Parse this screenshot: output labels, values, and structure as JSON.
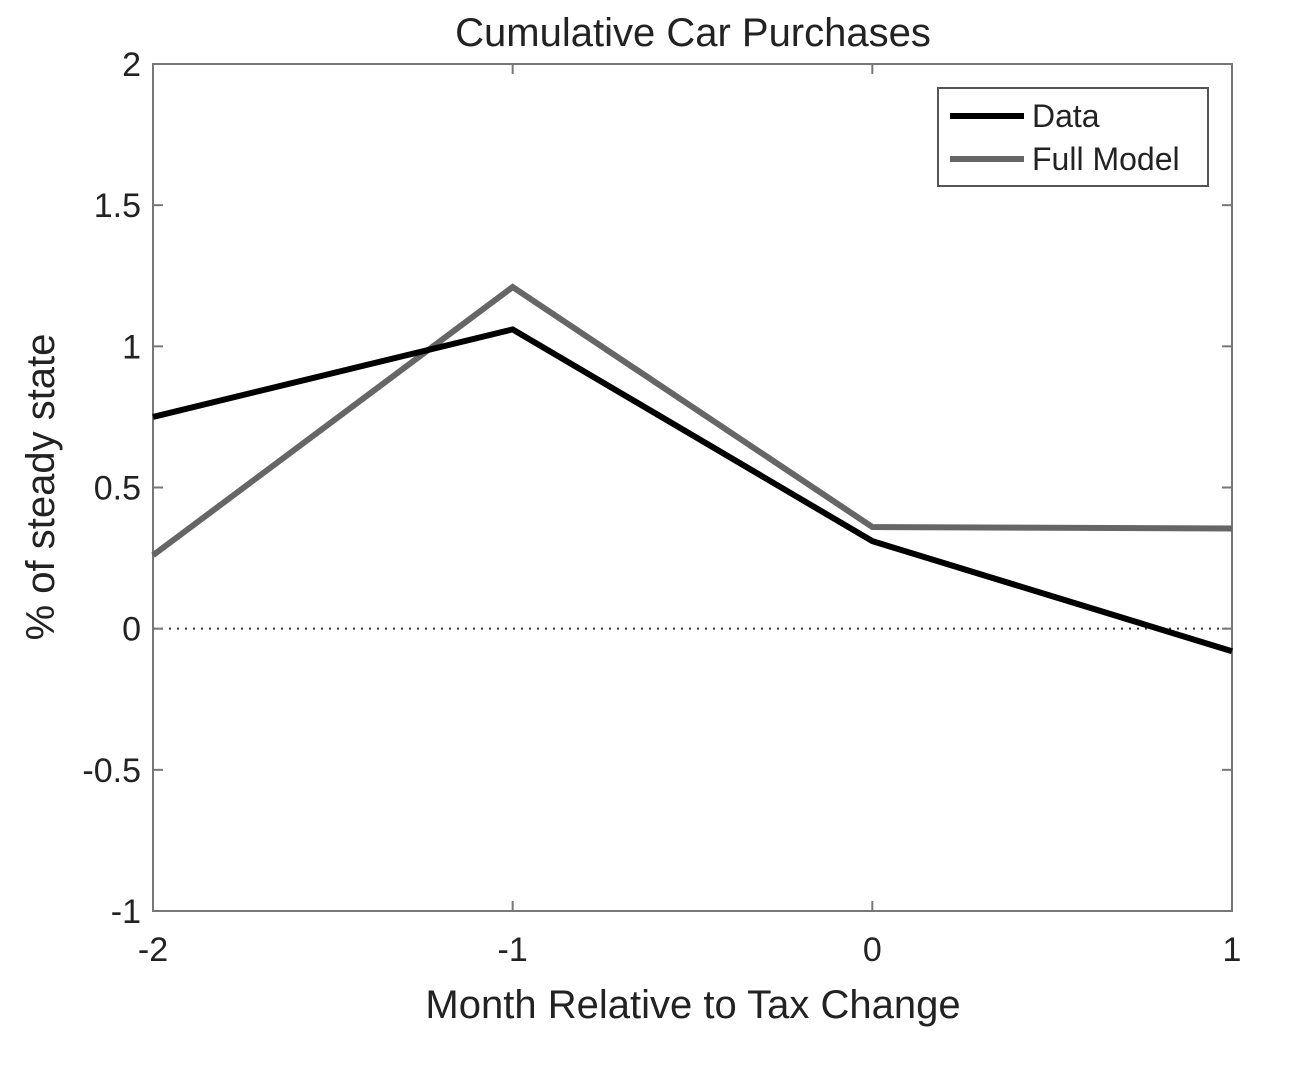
{
  "chart_data": {
    "type": "line",
    "title": "Cumulative Car Purchases",
    "xlabel": "Month Relative to Tax Change",
    "ylabel": "% of steady state",
    "x": [
      -2,
      -1,
      0,
      1
    ],
    "x_tick_labels": [
      "-2",
      "-1",
      "0",
      "1"
    ],
    "xlim": [
      -2,
      1
    ],
    "ylim": [
      -1,
      2
    ],
    "y_ticks": [
      -1,
      -0.5,
      0,
      0.5,
      1,
      1.5,
      2
    ],
    "y_tick_labels": [
      "-1",
      "-0.5",
      "0",
      "0.5",
      "1",
      "1.5",
      "2"
    ],
    "series": [
      {
        "name": "Data",
        "color": "#000000",
        "values": [
          0.75,
          1.06,
          0.31,
          -0.08
        ]
      },
      {
        "name": "Full Model",
        "color": "#666666",
        "values": [
          0.26,
          1.21,
          0.36,
          0.355
        ]
      }
    ],
    "reference_line": {
      "y": 0,
      "style": "dotted"
    },
    "grid": false,
    "legend_position": "top-right"
  }
}
